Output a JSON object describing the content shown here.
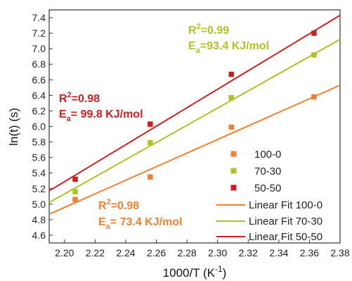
{
  "chart_data": {
    "type": "scatter",
    "xlabel": "1000/T (K",
    "xlabel_sup": "-1",
    "xlabel_end": ")",
    "ylabel": "ln(t) (s)",
    "xlim": [
      2.19,
      2.38
    ],
    "ylim": [
      4.5,
      7.5
    ],
    "x_ticks": [
      "2.20",
      "2.22",
      "2.24",
      "2.26",
      "2.28",
      "2.30",
      "2.32",
      "2.34",
      "2.36",
      "2.38"
    ],
    "y_ticks": [
      "4.6",
      "4.8",
      "5.0",
      "5.2",
      "5.4",
      "5.6",
      "5.8",
      "6.0",
      "6.2",
      "6.4",
      "6.6",
      "6.8",
      "7.0",
      "7.2",
      "7.4"
    ],
    "series": [
      {
        "name": "100-0",
        "color": "#f28030",
        "points": [
          [
            2.207,
            5.06
          ],
          [
            2.256,
            5.35
          ],
          [
            2.309,
            5.99
          ],
          [
            2.363,
            6.38
          ]
        ],
        "fit": {
          "name": "Linear Fit 100-0",
          "from": [
            2.19,
            4.87
          ],
          "to": [
            2.38,
            6.53
          ]
        }
      },
      {
        "name": "70-30",
        "color": "#b3bf26",
        "points": [
          [
            2.207,
            5.16
          ],
          [
            2.256,
            5.79
          ],
          [
            2.309,
            6.37
          ],
          [
            2.363,
            6.92
          ]
        ],
        "fit": {
          "name": "Linear Fit 70-30",
          "from": [
            2.19,
            5.02
          ],
          "to": [
            2.38,
            7.12
          ]
        }
      },
      {
        "name": "50-50",
        "color": "#cc1f1f",
        "points": [
          [
            2.207,
            5.32
          ],
          [
            2.256,
            6.03
          ],
          [
            2.309,
            6.67
          ],
          [
            2.363,
            7.2
          ]
        ],
        "fit": {
          "name": "Linear Fit 50-50",
          "from": [
            2.19,
            5.17
          ],
          "to": [
            2.38,
            7.43
          ]
        }
      }
    ],
    "annotations": [
      {
        "r2": "=0.99",
        "ea": "=93.4 KJ/mol",
        "color": "#b3bf26"
      },
      {
        "r2": "=0.98",
        "ea": "= 99.8 KJ/mol",
        "color": "#cc1f1f"
      },
      {
        "r2": "=0.98",
        "ea": "= 73.4 KJ/mol",
        "color": "#f28030"
      }
    ],
    "grid": false,
    "legend_position": "bottom-right"
  }
}
